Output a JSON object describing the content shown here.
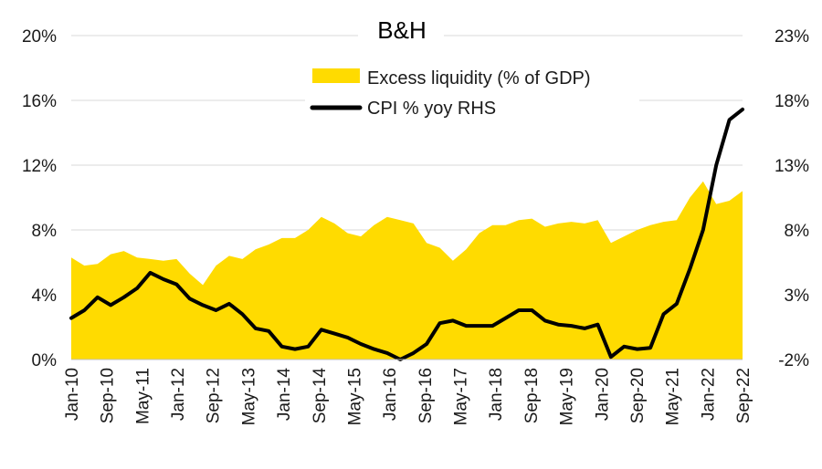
{
  "chart_data": {
    "type": "area+line",
    "title": "B&H",
    "legend": {
      "placement": "top-center",
      "entries": [
        {
          "name": "Excess liquidity (% of GDP)",
          "color": "#FFDB00",
          "kind": "area"
        },
        {
          "name": "CPI % yoy RHS",
          "color": "#000000",
          "kind": "line"
        }
      ]
    },
    "x_tick_labels": [
      "Jan-10",
      "Sep-10",
      "May-11",
      "Jan-12",
      "Sep-12",
      "May-13",
      "Jan-14",
      "Sep-14",
      "May-15",
      "Jan-16",
      "Sep-16",
      "May-17",
      "Jan-18",
      "Sep-18",
      "May-19",
      "Jan-20",
      "Sep-20",
      "May-21",
      "Jan-22",
      "Sep-22"
    ],
    "x_start": "Jan-10",
    "x_end": "Sep-22",
    "y_left": {
      "ticks": [
        "0%",
        "4%",
        "8%",
        "12%",
        "16%",
        "20%"
      ],
      "range": [
        0,
        20
      ]
    },
    "y_right": {
      "ticks": [
        "-2%",
        "3%",
        "8%",
        "13%",
        "18%",
        "23%"
      ],
      "range": [
        -2,
        23
      ]
    },
    "grid": "horizontal",
    "series": [
      {
        "name": "Excess liquidity (% of GDP)",
        "axis": "left",
        "points": [
          [
            "2010-01",
            6.3
          ],
          [
            "2010-04",
            5.8
          ],
          [
            "2010-07",
            5.9
          ],
          [
            "2010-10",
            6.5
          ],
          [
            "2011-01",
            6.7
          ],
          [
            "2011-04",
            6.3
          ],
          [
            "2011-07",
            6.2
          ],
          [
            "2011-10",
            6.1
          ],
          [
            "2012-01",
            6.2
          ],
          [
            "2012-04",
            5.3
          ],
          [
            "2012-07",
            4.6
          ],
          [
            "2012-10",
            5.8
          ],
          [
            "2013-01",
            6.4
          ],
          [
            "2013-04",
            6.2
          ],
          [
            "2013-07",
            6.8
          ],
          [
            "2013-10",
            7.1
          ],
          [
            "2014-01",
            7.5
          ],
          [
            "2014-04",
            7.5
          ],
          [
            "2014-07",
            8.0
          ],
          [
            "2014-10",
            8.8
          ],
          [
            "2015-01",
            8.4
          ],
          [
            "2015-04",
            7.8
          ],
          [
            "2015-07",
            7.6
          ],
          [
            "2015-10",
            8.3
          ],
          [
            "2016-01",
            8.8
          ],
          [
            "2016-04",
            8.6
          ],
          [
            "2016-07",
            8.4
          ],
          [
            "2016-10",
            7.2
          ],
          [
            "2017-01",
            6.9
          ],
          [
            "2017-04",
            6.1
          ],
          [
            "2017-07",
            6.8
          ],
          [
            "2017-10",
            7.8
          ],
          [
            "2018-01",
            8.3
          ],
          [
            "2018-04",
            8.3
          ],
          [
            "2018-07",
            8.6
          ],
          [
            "2018-10",
            8.7
          ],
          [
            "2019-01",
            8.2
          ],
          [
            "2019-04",
            8.4
          ],
          [
            "2019-07",
            8.5
          ],
          [
            "2019-10",
            8.4
          ],
          [
            "2020-01",
            8.6
          ],
          [
            "2020-04",
            7.2
          ],
          [
            "2020-07",
            7.6
          ],
          [
            "2020-10",
            8.0
          ],
          [
            "2021-01",
            8.3
          ],
          [
            "2021-04",
            8.5
          ],
          [
            "2021-07",
            8.6
          ],
          [
            "2021-10",
            10.0
          ],
          [
            "2022-01",
            11.0
          ],
          [
            "2022-04",
            9.6
          ],
          [
            "2022-07",
            9.8
          ],
          [
            "2022-10",
            10.4
          ]
        ]
      },
      {
        "name": "CPI % yoy RHS",
        "axis": "right",
        "points": [
          [
            "2010-01",
            1.2
          ],
          [
            "2010-04",
            1.8
          ],
          [
            "2010-07",
            2.8
          ],
          [
            "2010-10",
            2.2
          ],
          [
            "2011-01",
            2.8
          ],
          [
            "2011-04",
            3.5
          ],
          [
            "2011-07",
            4.7
          ],
          [
            "2011-10",
            4.2
          ],
          [
            "2012-01",
            3.8
          ],
          [
            "2012-04",
            2.7
          ],
          [
            "2012-07",
            2.2
          ],
          [
            "2012-10",
            1.8
          ],
          [
            "2013-01",
            2.3
          ],
          [
            "2013-04",
            1.5
          ],
          [
            "2013-07",
            0.4
          ],
          [
            "2013-10",
            0.2
          ],
          [
            "2014-01",
            -1.0
          ],
          [
            "2014-04",
            -1.2
          ],
          [
            "2014-07",
            -1.0
          ],
          [
            "2014-10",
            0.3
          ],
          [
            "2015-01",
            0.0
          ],
          [
            "2015-04",
            -0.3
          ],
          [
            "2015-07",
            -0.8
          ],
          [
            "2015-10",
            -1.2
          ],
          [
            "2016-01",
            -1.5
          ],
          [
            "2016-04",
            -2.0
          ],
          [
            "2016-07",
            -1.5
          ],
          [
            "2016-10",
            -0.8
          ],
          [
            "2017-01",
            0.8
          ],
          [
            "2017-04",
            1.0
          ],
          [
            "2017-07",
            0.6
          ],
          [
            "2017-10",
            0.6
          ],
          [
            "2018-01",
            0.6
          ],
          [
            "2018-04",
            1.2
          ],
          [
            "2018-07",
            1.8
          ],
          [
            "2018-10",
            1.8
          ],
          [
            "2019-01",
            1.0
          ],
          [
            "2019-04",
            0.7
          ],
          [
            "2019-07",
            0.6
          ],
          [
            "2019-10",
            0.4
          ],
          [
            "2020-01",
            0.7
          ],
          [
            "2020-04",
            -1.8
          ],
          [
            "2020-07",
            -1.0
          ],
          [
            "2020-10",
            -1.2
          ],
          [
            "2021-01",
            -1.1
          ],
          [
            "2021-04",
            1.5
          ],
          [
            "2021-07",
            2.3
          ],
          [
            "2021-10",
            5.0
          ],
          [
            "2022-01",
            8.0
          ],
          [
            "2022-04",
            13.0
          ],
          [
            "2022-07",
            16.5
          ],
          [
            "2022-10",
            17.3
          ]
        ]
      }
    ]
  }
}
